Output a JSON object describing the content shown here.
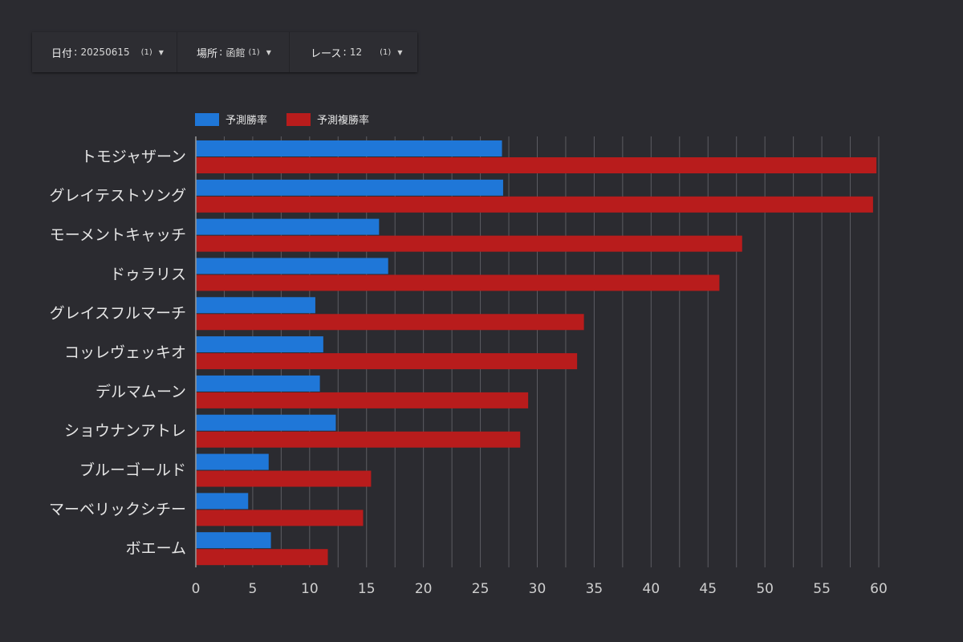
{
  "filters": [
    {
      "label": "日付",
      "value": "20250615",
      "count": "(1)",
      "caret": "▼"
    },
    {
      "label": "場所",
      "value": "函館",
      "count": "(1)",
      "caret": "▼"
    },
    {
      "label": "レース",
      "value": "12",
      "count": "(1)",
      "caret": "▼"
    }
  ],
  "colors": {
    "background": "#2b2b30",
    "series1": "#1f77d8",
    "series2": "#b81c1c",
    "grid": "#5c5c62"
  },
  "chart_data": {
    "type": "bar",
    "orientation": "horizontal",
    "categories": [
      "トモジャザーン",
      "グレイテストソング",
      "モーメントキャッチ",
      "ドゥラリス",
      "グレイスフルマーチ",
      "コッレヴェッキオ",
      "デルマムーン",
      "ショウナンアトレ",
      "ブルーゴールド",
      "マーベリックシチー",
      "ボエーム"
    ],
    "series": [
      {
        "name": "予測勝率",
        "color": "#1f77d8",
        "values": [
          26.9,
          27.0,
          16.1,
          16.9,
          10.5,
          11.2,
          10.9,
          12.3,
          6.4,
          4.6,
          6.6
        ]
      },
      {
        "name": "予測複勝率",
        "color": "#b81c1c",
        "values": [
          59.8,
          59.5,
          48.0,
          46.0,
          34.1,
          33.5,
          29.2,
          28.5,
          15.4,
          14.7,
          11.6
        ]
      }
    ],
    "xlim": [
      0,
      60
    ],
    "xticks": [
      0,
      5,
      10,
      15,
      20,
      25,
      30,
      35,
      40,
      45,
      50,
      55,
      60
    ],
    "xlabel": "",
    "ylabel": "",
    "grid": true,
    "legend": "top-left"
  }
}
